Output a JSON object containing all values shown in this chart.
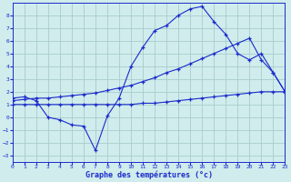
{
  "background_color": "#d0ecec",
  "grid_color": "#a8cccc",
  "line_color": "#1a2acc",
  "xlabel": "Graphe des températures (°c)",
  "x_ticks": [
    0,
    1,
    2,
    3,
    4,
    5,
    6,
    7,
    8,
    9,
    10,
    11,
    12,
    13,
    14,
    15,
    16,
    17,
    18,
    19,
    20,
    21,
    22,
    23
  ],
  "y_ticks": [
    -3,
    -2,
    -1,
    0,
    1,
    2,
    3,
    4,
    5,
    6,
    7,
    8
  ],
  "xlim": [
    0,
    23
  ],
  "ylim": [
    -3.5,
    9.0
  ],
  "line1_x": [
    0,
    1,
    2,
    3,
    4,
    5,
    6,
    7,
    8,
    9,
    10,
    11,
    12,
    13,
    14,
    15,
    16,
    17,
    18,
    19,
    20,
    21,
    22,
    23
  ],
  "line1_y": [
    1.5,
    1.6,
    1.3,
    0.0,
    -0.2,
    -0.6,
    -0.7,
    -2.6,
    0.1,
    1.5,
    4.0,
    5.5,
    6.8,
    7.2,
    8.0,
    8.5,
    8.7,
    7.5,
    6.5,
    5.0,
    4.5,
    5.0,
    3.5,
    2.0
  ],
  "line2_x": [
    0,
    1,
    2,
    3,
    4,
    5,
    6,
    7,
    8,
    9,
    10,
    11,
    12,
    13,
    14,
    15,
    16,
    17,
    18,
    19,
    20,
    21,
    22,
    23
  ],
  "line2_y": [
    1.3,
    1.4,
    1.5,
    1.5,
    1.6,
    1.7,
    1.8,
    1.9,
    2.1,
    2.3,
    2.5,
    2.8,
    3.1,
    3.5,
    3.8,
    4.2,
    4.6,
    5.0,
    5.4,
    5.8,
    6.2,
    4.5,
    3.5,
    2.0
  ],
  "line3_x": [
    0,
    1,
    2,
    3,
    4,
    5,
    6,
    7,
    8,
    9,
    10,
    11,
    12,
    13,
    14,
    15,
    16,
    17,
    18,
    19,
    20,
    21,
    22,
    23
  ],
  "line3_y": [
    1.0,
    1.0,
    1.0,
    1.0,
    1.0,
    1.0,
    1.0,
    1.0,
    1.0,
    1.0,
    1.0,
    1.1,
    1.1,
    1.2,
    1.3,
    1.4,
    1.5,
    1.6,
    1.7,
    1.8,
    1.9,
    2.0,
    2.0,
    2.0
  ]
}
